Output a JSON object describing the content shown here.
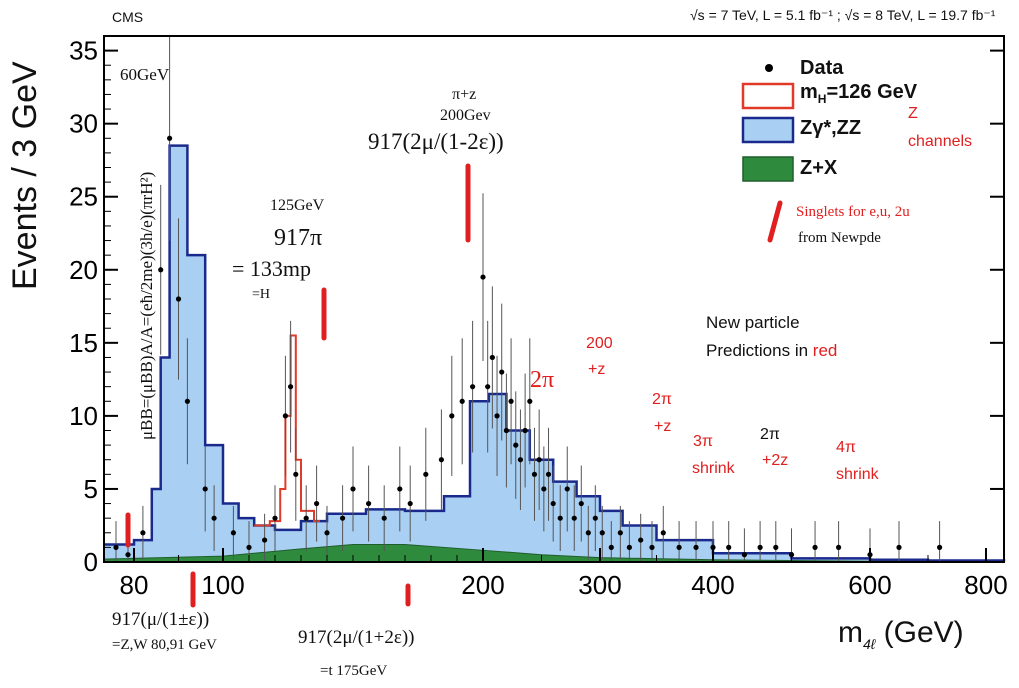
{
  "header": {
    "experiment": "CMS",
    "energy_lumi": "√s = 7 TeV, L = 5.1 fb⁻¹ ; √s = 8 TeV, L = 19.7 fb⁻¹"
  },
  "colors": {
    "zz": "#a9cff2",
    "zz_line": "#1a2a8c",
    "zx": "#2e8b3e",
    "signal": "#e03a2a",
    "annotation": "#e02020",
    "axis": "#000000"
  },
  "chart_data": {
    "type": "histogram",
    "title": "",
    "xlabel": "m4ℓ (GeV)",
    "xlabel_main": "m",
    "xlabel_sub": "4ℓ",
    "xlabel_unit": " (GeV)",
    "ylabel": "Events / 3 GeV",
    "xlim": [
      70,
      850
    ],
    "ylim": [
      0,
      36
    ],
    "x_ticks": [
      80,
      100,
      200,
      300,
      400,
      600,
      800
    ],
    "y_ticks": [
      0,
      5,
      10,
      15,
      20,
      25,
      30,
      35
    ],
    "legend": {
      "placement": "top-right",
      "entries": [
        {
          "label": "Data"
        },
        {
          "label": "mH=126 GeV",
          "main": "m",
          "sub": "H",
          "rest": "=126 GeV"
        },
        {
          "label": "Zγ*,ZZ"
        },
        {
          "label": "Z+X"
        }
      ]
    },
    "series": [
      {
        "name": "Zγ*,ZZ",
        "type": "step-area",
        "points": [
          [
            70,
            1.2
          ],
          [
            80,
            1.5
          ],
          [
            84,
            5
          ],
          [
            86,
            14
          ],
          [
            88,
            28.5
          ],
          [
            92,
            21
          ],
          [
            96,
            8
          ],
          [
            100,
            4
          ],
          [
            106,
            3
          ],
          [
            112,
            2.5
          ],
          [
            120,
            2.2
          ],
          [
            130,
            2.8
          ],
          [
            140,
            3.3
          ],
          [
            155,
            3.6
          ],
          [
            170,
            3.5
          ],
          [
            185,
            4.5
          ],
          [
            195,
            11
          ],
          [
            205,
            11.5
          ],
          [
            220,
            9
          ],
          [
            240,
            7
          ],
          [
            260,
            5.5
          ],
          [
            280,
            4.5
          ],
          [
            300,
            3.5
          ],
          [
            320,
            2.5
          ],
          [
            350,
            1.5
          ],
          [
            400,
            0.6
          ],
          [
            500,
            0.25
          ],
          [
            600,
            0.15
          ],
          [
            700,
            0.1
          ],
          [
            850,
            0.05
          ]
        ]
      },
      {
        "name": "mH=126 GeV",
        "type": "step-outline",
        "points": [
          [
            112,
            2.5
          ],
          [
            118,
            2.8
          ],
          [
            122,
            5
          ],
          [
            124,
            10
          ],
          [
            126,
            15.5
          ],
          [
            128,
            7
          ],
          [
            130,
            3.5
          ],
          [
            135,
            2.8
          ]
        ]
      },
      {
        "name": "Z+X",
        "type": "area",
        "points": [
          [
            70,
            0.2
          ],
          [
            100,
            0.4
          ],
          [
            130,
            0.9
          ],
          [
            150,
            1.2
          ],
          [
            170,
            1.2
          ],
          [
            200,
            0.8
          ],
          [
            250,
            0.5
          ],
          [
            300,
            0.3
          ],
          [
            400,
            0.15
          ],
          [
            600,
            0.05
          ],
          [
            850,
            0.02
          ]
        ]
      }
    ],
    "data_points": [
      [
        74,
        1
      ],
      [
        78,
        0.5
      ],
      [
        82,
        2
      ],
      [
        86,
        20
      ],
      [
        88,
        29
      ],
      [
        90,
        18
      ],
      [
        92,
        11
      ],
      [
        96,
        5
      ],
      [
        98,
        3
      ],
      [
        104,
        2
      ],
      [
        110,
        1
      ],
      [
        116,
        1.5
      ],
      [
        120,
        3
      ],
      [
        124,
        10
      ],
      [
        126,
        12
      ],
      [
        128,
        6
      ],
      [
        132,
        3
      ],
      [
        136,
        4
      ],
      [
        140,
        2
      ],
      [
        146,
        3
      ],
      [
        150,
        5
      ],
      [
        156,
        4
      ],
      [
        162,
        3
      ],
      [
        168,
        5
      ],
      [
        172,
        4
      ],
      [
        178,
        6
      ],
      [
        184,
        7
      ],
      [
        188,
        10
      ],
      [
        192,
        11
      ],
      [
        196,
        12
      ],
      [
        200,
        19.5
      ],
      [
        204,
        12
      ],
      [
        208,
        14
      ],
      [
        212,
        10
      ],
      [
        216,
        13
      ],
      [
        220,
        9
      ],
      [
        224,
        11
      ],
      [
        228,
        8
      ],
      [
        232,
        7
      ],
      [
        236,
        9
      ],
      [
        240,
        11
      ],
      [
        244,
        6
      ],
      [
        248,
        7
      ],
      [
        252,
        5
      ],
      [
        256,
        6
      ],
      [
        260,
        4
      ],
      [
        266,
        3
      ],
      [
        272,
        5
      ],
      [
        278,
        3
      ],
      [
        284,
        4
      ],
      [
        290,
        2
      ],
      [
        296,
        3
      ],
      [
        302,
        2
      ],
      [
        310,
        1
      ],
      [
        318,
        2
      ],
      [
        326,
        1
      ],
      [
        336,
        1.5
      ],
      [
        346,
        1
      ],
      [
        356,
        2
      ],
      [
        370,
        1
      ],
      [
        385,
        1
      ],
      [
        400,
        1
      ],
      [
        420,
        1
      ],
      [
        440,
        0.5
      ],
      [
        460,
        1
      ],
      [
        480,
        1
      ],
      [
        500,
        0.5
      ],
      [
        530,
        1
      ],
      [
        560,
        1
      ],
      [
        600,
        0.5
      ],
      [
        650,
        1
      ],
      [
        720,
        1
      ]
    ],
    "annotations": [
      {
        "text": "60GeV",
        "color": "black"
      },
      {
        "text": "μBB=(μBB)A/A=(eħ/2me)(3h/e)(πrH²)",
        "color": "black"
      },
      {
        "text": "π+z",
        "color": "black"
      },
      {
        "text": "200Gev",
        "color": "black"
      },
      {
        "text": "917(2μ/(1-2ε))",
        "color": "black"
      },
      {
        "text": "125GeV",
        "color": "black"
      },
      {
        "text": "917π",
        "color": "black"
      },
      {
        "text": "= 133mp",
        "color": "black"
      },
      {
        "text": "=H",
        "color": "black"
      },
      {
        "text": "Z",
        "color": "red"
      },
      {
        "text": "channels",
        "color": "red"
      },
      {
        "text": "Singlets for e,u, 2u",
        "color": "red"
      },
      {
        "text": "from Newpde",
        "color": "black"
      },
      {
        "text": "New particle",
        "color": "black"
      },
      {
        "text": "Predictions in",
        "color": "black"
      },
      {
        "text": "red",
        "color": "red"
      },
      {
        "text": "200",
        "color": "red"
      },
      {
        "text": "+z",
        "color": "red"
      },
      {
        "text": "2π",
        "color": "red"
      },
      {
        "text": "2π",
        "color": "red"
      },
      {
        "text": "+z",
        "color": "red"
      },
      {
        "text": "3π",
        "color": "red"
      },
      {
        "text": "shrink",
        "color": "red"
      },
      {
        "text": "2π",
        "color": "black"
      },
      {
        "text": "+2z",
        "color": "red"
      },
      {
        "text": "4π",
        "color": "red"
      },
      {
        "text": "shrink",
        "color": "red"
      },
      {
        "text": "917(μ/(1±ε))",
        "color": "black"
      },
      {
        "text": "=Z,W 80,91 GeV",
        "color": "black"
      },
      {
        "text": "917(2μ/(1+2ε))",
        "color": "black"
      },
      {
        "text": "=t 175GeV",
        "color": "black"
      }
    ],
    "red_markers": [
      86,
      92,
      127,
      170,
      185
    ]
  }
}
